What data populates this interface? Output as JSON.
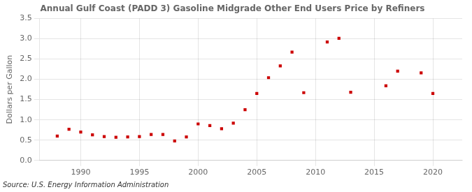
{
  "chart_data": {
    "type": "scatter",
    "title": "Annual Gulf Coast (PADD 3) Gasoline Midgrade Other End Users Price by Refiners",
    "ylabel": "Dollars per Gallon",
    "annotations": [
      "Source: U.S. Energy Information Administration"
    ],
    "x": [
      1988,
      1989,
      1990,
      1991,
      1992,
      1993,
      1994,
      1995,
      1996,
      1997,
      1998,
      1999,
      2000,
      2001,
      2002,
      2003,
      2004,
      2005,
      2006,
      2007,
      2008,
      2009,
      2011,
      2012,
      2013,
      2016,
      2017,
      2019,
      2020
    ],
    "values": [
      0.6,
      0.77,
      0.7,
      0.63,
      0.59,
      0.57,
      0.58,
      0.59,
      0.64,
      0.64,
      0.48,
      0.58,
      0.9,
      0.86,
      0.78,
      0.92,
      1.25,
      1.65,
      2.04,
      2.33,
      2.67,
      1.67,
      2.92,
      3.01,
      1.68,
      1.84,
      2.2,
      2.16,
      1.65
    ],
    "color": "#cc0000",
    "marker": "square",
    "xlim": [
      1986.5,
      2022.5
    ],
    "xticks": [
      1990,
      1995,
      2000,
      2005,
      2010,
      2015,
      2020
    ],
    "ylim": [
      0.0,
      3.5
    ],
    "yticks": [
      {
        "value": 0.0,
        "label": "0.0"
      },
      0.5,
      {
        "value": 1.0,
        "label": "1.0"
      },
      1.5,
      {
        "value": 2.0,
        "label": "2.0"
      },
      2.5,
      {
        "value": 3.0,
        "label": "3.0"
      },
      3.5
    ],
    "grid": true
  }
}
